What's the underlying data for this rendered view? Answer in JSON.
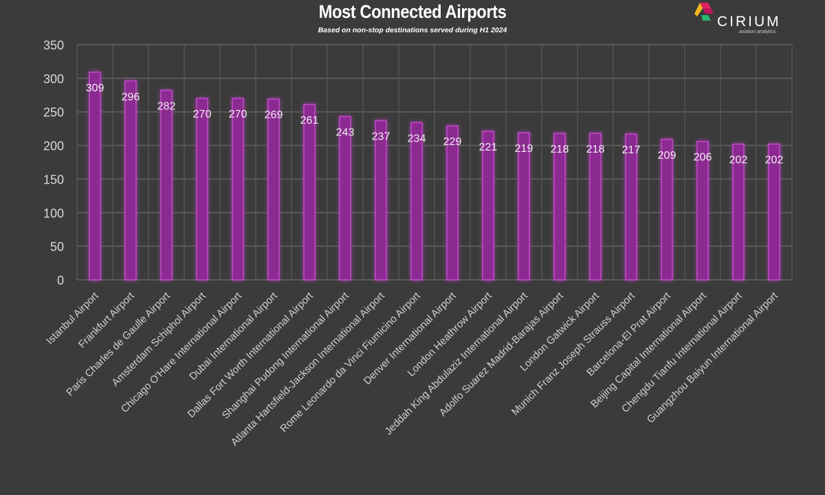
{
  "chart_data": {
    "type": "bar",
    "title": "Most Connected Airports",
    "subtitle": "Based on non-stop destinations served during H1 2024",
    "xlabel": "",
    "ylabel": "",
    "ylim": [
      0,
      350
    ],
    "yticks": [
      0,
      50,
      100,
      150,
      200,
      250,
      300,
      350
    ],
    "grid": true,
    "bar_color": "#8b2a91",
    "bar_edge_color": "#c14bc8",
    "categories": [
      "Istanbul Airport",
      "Frankfurt Airport",
      "Paris Charles de Gaulle Airport",
      "Amsterdam Schiphol Airport",
      "Chicago O'Hare International Airport",
      "Dubai International Airport",
      "Dallas Fort Worth International Airport",
      "Shanghai Pudong International Airport",
      "Atlanta Hartsfield-Jackson International Airport",
      "Rome Leonardo da Vinci Fiumicino Airport",
      "Denver International Airport",
      "London Heathrow Airport",
      "Jeddah King Abdulaziz International Airport",
      "Adolfo Suarez Madrid-Barajas Airport",
      "London Gatwick Airport",
      "Munich Franz Joseph Strauss Airport",
      "Barcelona-El Prat Airport",
      "Beijing Capital International Airport",
      "Chengdu Tianfu International Airport",
      "Guangzhou Baiyun International Airport"
    ],
    "values": [
      309,
      296,
      282,
      270,
      270,
      269,
      261,
      243,
      237,
      234,
      229,
      221,
      219,
      218,
      218,
      217,
      209,
      206,
      202,
      202
    ]
  },
  "logo": {
    "name": "CIRIUM",
    "tagline": "aviation analytics"
  }
}
